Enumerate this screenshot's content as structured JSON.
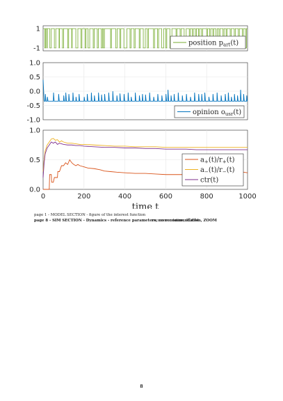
{
  "chart_data": [
    {
      "type": "line",
      "ylim": [
        -1.3,
        1.3
      ],
      "xlim": [
        0,
        1000
      ],
      "yticks": [
        "1",
        "-1"
      ],
      "series": [
        {
          "name": "position p_art(t)",
          "color": "#77ac30",
          "switch_times": [
            8,
            12,
            18,
            20,
            33,
            40,
            55,
            62,
            78,
            80,
            95,
            100,
            120,
            125,
            140,
            142,
            160,
            170,
            185,
            190,
            205,
            210,
            220,
            228,
            245,
            250,
            265,
            270,
            285,
            290,
            295,
            300,
            330,
            334,
            355,
            362,
            375,
            380,
            395,
            410,
            425,
            430,
            445,
            450,
            470,
            475,
            490,
            500,
            510,
            515,
            540,
            545,
            560,
            565,
            580,
            590,
            600,
            605,
            620,
            630,
            650,
            655,
            670,
            675,
            690,
            700,
            715,
            720,
            730,
            735,
            745,
            750,
            760,
            765,
            775,
            780,
            800,
            805,
            815,
            820,
            830,
            835,
            845,
            852,
            860,
            865,
            880,
            885,
            895,
            900,
            915,
            920,
            935,
            940,
            955,
            960,
            975,
            980,
            990,
            995
          ]
        }
      ],
      "legend_placement": "top-right",
      "grid": true
    },
    {
      "type": "line",
      "ylim": [
        -1.0,
        1.0
      ],
      "xlim": [
        0,
        1000
      ],
      "yticks": [
        "1.0",
        "0.5",
        "0.0",
        "-0.5",
        "-1.0"
      ],
      "series": [
        {
          "name": "opinion o_usr(t)",
          "color": "#0072bd",
          "baseline": -0.35,
          "spikes": [
            [
              0,
              0.4
            ],
            [
              10,
              -0.1
            ],
            [
              20,
              -0.2
            ],
            [
              50,
              -0.05
            ],
            [
              75,
              -0.1
            ],
            [
              100,
              -0.15
            ],
            [
              110,
              -0.05
            ],
            [
              125,
              -0.1
            ],
            [
              145,
              -0.05
            ],
            [
              160,
              -0.2
            ],
            [
              175,
              -0.1
            ],
            [
              200,
              -0.2
            ],
            [
              215,
              -0.1
            ],
            [
              235,
              -0.05
            ],
            [
              250,
              -0.15
            ],
            [
              270,
              -0.05
            ],
            [
              285,
              -0.12
            ],
            [
              300,
              -0.1
            ],
            [
              320,
              -0.05
            ],
            [
              340,
              0.0
            ],
            [
              360,
              -0.15
            ],
            [
              375,
              -0.08
            ],
            [
              395,
              -0.1
            ],
            [
              415,
              -0.05
            ],
            [
              430,
              -0.2
            ],
            [
              450,
              -0.05
            ],
            [
              470,
              -0.15
            ],
            [
              485,
              -0.1
            ],
            [
              500,
              -0.12
            ],
            [
              520,
              -0.05
            ],
            [
              540,
              -0.2
            ],
            [
              560,
              -0.1
            ],
            [
              580,
              -0.15
            ],
            [
              600,
              -0.1
            ],
            [
              610,
              0.05
            ],
            [
              625,
              -0.15
            ],
            [
              640,
              -0.1
            ],
            [
              660,
              -0.05
            ],
            [
              680,
              -0.15
            ],
            [
              700,
              -0.1
            ],
            [
              720,
              -0.2
            ],
            [
              740,
              -0.05
            ],
            [
              760,
              -0.1
            ],
            [
              775,
              -0.1
            ],
            [
              790,
              -0.05
            ],
            [
              810,
              -0.2
            ],
            [
              830,
              -0.1
            ],
            [
              850,
              -0.05
            ],
            [
              870,
              -0.15
            ],
            [
              890,
              -0.1
            ],
            [
              905,
              -0.05
            ],
            [
              920,
              -0.2
            ],
            [
              935,
              -0.1
            ],
            [
              950,
              -0.15
            ],
            [
              965,
              0.05
            ],
            [
              980,
              -0.1
            ],
            [
              995,
              -0.15
            ]
          ]
        }
      ],
      "legend_placement": "bottom-right",
      "grid": true
    },
    {
      "type": "line",
      "ylim": [
        0,
        1
      ],
      "xlim": [
        0,
        1000
      ],
      "xticks": [
        "0",
        "200",
        "400",
        "600",
        "800",
        "1000"
      ],
      "yticks": [
        "1.0",
        "0.5",
        "0.0"
      ],
      "xlabel": "time t",
      "series": [
        {
          "name": "a+(t)/r+(t)",
          "color": "#d95319",
          "points": [
            [
              0,
              0
            ],
            [
              30,
              0
            ],
            [
              32,
              0.25
            ],
            [
              40,
              0.25
            ],
            [
              42,
              0.12
            ],
            [
              50,
              0.12
            ],
            [
              55,
              0.2
            ],
            [
              70,
              0.2
            ],
            [
              72,
              0.3
            ],
            [
              80,
              0.3
            ],
            [
              90,
              0.4
            ],
            [
              100,
              0.4
            ],
            [
              110,
              0.45
            ],
            [
              120,
              0.42
            ],
            [
              130,
              0.5
            ],
            [
              140,
              0.45
            ],
            [
              150,
              0.42
            ],
            [
              160,
              0.4
            ],
            [
              170,
              0.42
            ],
            [
              180,
              0.4
            ],
            [
              200,
              0.38
            ],
            [
              220,
              0.36
            ],
            [
              250,
              0.35
            ],
            [
              280,
              0.33
            ],
            [
              300,
              0.31
            ],
            [
              330,
              0.3
            ],
            [
              360,
              0.29
            ],
            [
              400,
              0.28
            ],
            [
              450,
              0.27
            ],
            [
              500,
              0.27
            ],
            [
              550,
              0.26
            ],
            [
              600,
              0.25
            ],
            [
              650,
              0.25
            ],
            [
              700,
              0.25
            ],
            [
              750,
              0.25
            ],
            [
              800,
              0.24
            ],
            [
              850,
              0.24
            ],
            [
              900,
              0.24
            ],
            [
              950,
              0.3
            ],
            [
              980,
              0.29
            ],
            [
              1000,
              0.28
            ]
          ]
        },
        {
          "name": "a-(t)/r-(t)",
          "color": "#edb120",
          "points": [
            [
              0,
              0.3
            ],
            [
              5,
              0.5
            ],
            [
              10,
              0.65
            ],
            [
              20,
              0.75
            ],
            [
              30,
              0.8
            ],
            [
              40,
              0.85
            ],
            [
              50,
              0.86
            ],
            [
              60,
              0.83
            ],
            [
              70,
              0.84
            ],
            [
              80,
              0.8
            ],
            [
              90,
              0.82
            ],
            [
              100,
              0.8
            ],
            [
              120,
              0.78
            ],
            [
              140,
              0.78
            ],
            [
              160,
              0.77
            ],
            [
              180,
              0.76
            ],
            [
              200,
              0.76
            ],
            [
              250,
              0.75
            ],
            [
              300,
              0.74
            ],
            [
              350,
              0.73
            ],
            [
              400,
              0.73
            ],
            [
              450,
              0.72
            ],
            [
              500,
              0.72
            ],
            [
              550,
              0.72
            ],
            [
              600,
              0.71
            ],
            [
              650,
              0.71
            ],
            [
              700,
              0.71
            ],
            [
              750,
              0.71
            ],
            [
              800,
              0.71
            ],
            [
              850,
              0.71
            ],
            [
              900,
              0.71
            ],
            [
              950,
              0.71
            ],
            [
              1000,
              0.71
            ]
          ]
        },
        {
          "name": "ctr(t)",
          "color": "#7e2f8e",
          "points": [
            [
              0,
              0.2
            ],
            [
              5,
              0.45
            ],
            [
              10,
              0.6
            ],
            [
              20,
              0.7
            ],
            [
              30,
              0.75
            ],
            [
              40,
              0.8
            ],
            [
              50,
              0.78
            ],
            [
              60,
              0.8
            ],
            [
              70,
              0.76
            ],
            [
              80,
              0.78
            ],
            [
              90,
              0.77
            ],
            [
              100,
              0.76
            ],
            [
              120,
              0.75
            ],
            [
              140,
              0.75
            ],
            [
              160,
              0.74
            ],
            [
              180,
              0.74
            ],
            [
              200,
              0.73
            ],
            [
              250,
              0.72
            ],
            [
              300,
              0.71
            ],
            [
              350,
              0.71
            ],
            [
              400,
              0.7
            ],
            [
              450,
              0.7
            ],
            [
              500,
              0.69
            ],
            [
              550,
              0.69
            ],
            [
              600,
              0.68
            ],
            [
              650,
              0.68
            ],
            [
              700,
              0.68
            ],
            [
              750,
              0.67
            ],
            [
              800,
              0.67
            ],
            [
              850,
              0.67
            ],
            [
              900,
              0.67
            ],
            [
              950,
              0.67
            ],
            [
              1000,
              0.67
            ]
          ]
        }
      ],
      "legend_placement": "bottom-right",
      "grid": true
    }
  ],
  "legend": {
    "p1_name": "position p",
    "p1_sub": "art",
    "p1_arg": "(t)",
    "p2_name": "opinion o",
    "p2_sub": "usr",
    "p2_arg": "(t)",
    "p3_l1_name": "a",
    "p3_l1_sup": "+",
    "p3_l1_mid": "(t)/r",
    "p3_l1_sup2": "+",
    "p3_l1_arg": "(t)",
    "p3_l2_name": "a",
    "p3_l2_sup": "−",
    "p3_l2_mid": "(t)/r",
    "p3_l2_sup2": "−",
    "p3_l2_arg": "(t)",
    "p3_l3": "ctr(t)"
  },
  "captions": {
    "line1": "page 1 - MODEL SECTION - figure of the interest function",
    "line2": "page 8 - SIM SECTION - Dynamics - reference parameters, no recommendation, ZOOM",
    "line2_overlap": "recommendation, ZOOM"
  },
  "page_number": "8"
}
